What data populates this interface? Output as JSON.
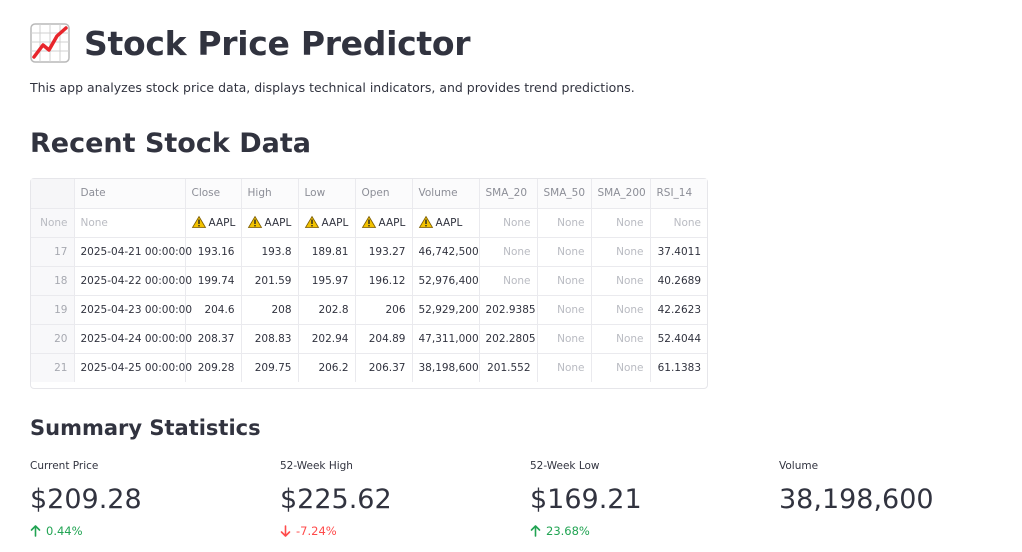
{
  "header": {
    "title": "Stock Price Predictor",
    "icon": "chart-increasing-icon",
    "description": "This app analyzes stock price data, displays technical indicators, and provides trend predictions."
  },
  "recent": {
    "heading": "Recent Stock Data",
    "columns": [
      "Date",
      "Close",
      "High",
      "Low",
      "Open",
      "Volume",
      "SMA_20",
      "SMA_50",
      "SMA_200",
      "RSI_14"
    ],
    "ticker_row": {
      "index": "None",
      "date": "None",
      "close": "AAPL",
      "high": "AAPL",
      "low": "AAPL",
      "open": "AAPL",
      "volume": "AAPL",
      "sma20": "None",
      "sma50": "None",
      "sma200": "None",
      "rsi14": "None"
    },
    "rows": [
      {
        "index": "17",
        "date": "2025-04-21 00:00:00",
        "close": "193.16",
        "high": "193.8",
        "low": "189.81",
        "open": "193.27",
        "volume": "46,742,500",
        "sma20": "None",
        "sma50": "None",
        "sma200": "None",
        "rsi14": "37.4011"
      },
      {
        "index": "18",
        "date": "2025-04-22 00:00:00",
        "close": "199.74",
        "high": "201.59",
        "low": "195.97",
        "open": "196.12",
        "volume": "52,976,400",
        "sma20": "None",
        "sma50": "None",
        "sma200": "None",
        "rsi14": "40.2689"
      },
      {
        "index": "19",
        "date": "2025-04-23 00:00:00",
        "close": "204.6",
        "high": "208",
        "low": "202.8",
        "open": "206",
        "volume": "52,929,200",
        "sma20": "202.9385",
        "sma50": "None",
        "sma200": "None",
        "rsi14": "42.2623"
      },
      {
        "index": "20",
        "date": "2025-04-24 00:00:00",
        "close": "208.37",
        "high": "208.83",
        "low": "202.94",
        "open": "204.89",
        "volume": "47,311,000",
        "sma20": "202.2805",
        "sma50": "None",
        "sma200": "None",
        "rsi14": "52.4044"
      },
      {
        "index": "21",
        "date": "2025-04-25 00:00:00",
        "close": "209.28",
        "high": "209.75",
        "low": "206.2",
        "open": "206.37",
        "volume": "38,198,600",
        "sma20": "201.552",
        "sma50": "None",
        "sma200": "None",
        "rsi14": "61.1383"
      }
    ]
  },
  "summary": {
    "heading": "Summary Statistics",
    "current_price": {
      "label": "Current Price",
      "value": "$209.28",
      "delta": "0.44%",
      "direction": "up"
    },
    "week52_high": {
      "label": "52-Week High",
      "value": "$225.62",
      "delta": "-7.24%",
      "direction": "down"
    },
    "week52_low": {
      "label": "52-Week Low",
      "value": "$169.21",
      "delta": "23.68%",
      "direction": "up"
    },
    "volume": {
      "label": "Volume",
      "value": "38,198,600"
    }
  },
  "colors": {
    "text": "#31333f",
    "delta_up": "#21a453",
    "delta_down": "#ff4b4b",
    "warning": "#f2c200"
  }
}
